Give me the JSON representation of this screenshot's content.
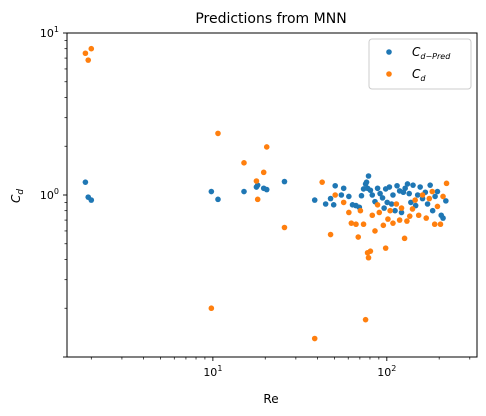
{
  "chart_data": {
    "type": "scatter",
    "title": "Predictions from MNN",
    "xlabel": "Re",
    "ylabel": "C_d",
    "xscale": "log",
    "yscale": "log",
    "xlim": [
      1.45,
      330
    ],
    "ylim": [
      0.1,
      10
    ],
    "grid": false,
    "legend_position": "top-right",
    "x_ticks": [
      {
        "value": 10,
        "base": "10",
        "exp": "1"
      },
      {
        "value": 100,
        "base": "10",
        "exp": "2"
      }
    ],
    "y_ticks": [
      {
        "value": 1,
        "base": "10",
        "exp": "0"
      },
      {
        "value": 10,
        "base": "10",
        "exp": "1"
      }
    ],
    "series": [
      {
        "name": "C_{d-Pred}",
        "legend_main": "C",
        "legend_sub": "d−Pred",
        "color": "#1f77b4",
        "points": [
          [
            1.85,
            1.2
          ],
          [
            1.92,
            0.97
          ],
          [
            2.0,
            0.93
          ],
          [
            9.8,
            1.05
          ],
          [
            10.7,
            0.94
          ],
          [
            15.1,
            1.05
          ],
          [
            17.8,
            1.12
          ],
          [
            18.1,
            1.15
          ],
          [
            19.6,
            1.1
          ],
          [
            20.4,
            1.08
          ],
          [
            25.8,
            1.21
          ],
          [
            38.5,
            0.93
          ],
          [
            44.5,
            0.88
          ],
          [
            47.5,
            0.95
          ],
          [
            49.5,
            0.87
          ],
          [
            50.5,
            1.14
          ],
          [
            54.8,
            1.0
          ],
          [
            56.5,
            1.1
          ],
          [
            60.5,
            0.98
          ],
          [
            63.5,
            0.87
          ],
          [
            66.5,
            0.86
          ],
          [
            69.5,
            0.84
          ],
          [
            71.5,
            0.99
          ],
          [
            73.5,
            1.09
          ],
          [
            75.5,
            1.17
          ],
          [
            76.5,
            1.2
          ],
          [
            77.5,
            1.1
          ],
          [
            78.5,
            1.31
          ],
          [
            80.5,
            1.07
          ],
          [
            82.5,
            1.0
          ],
          [
            85.5,
            0.91
          ],
          [
            88.5,
            1.1
          ],
          [
            91.5,
            1.02
          ],
          [
            94.5,
            0.96
          ],
          [
            96.5,
            0.83
          ],
          [
            98.5,
            1.09
          ],
          [
            100.5,
            0.9
          ],
          [
            103.5,
            1.12
          ],
          [
            106.5,
            0.88
          ],
          [
            108.5,
            1.0
          ],
          [
            111.5,
            0.8
          ],
          [
            114.5,
            1.14
          ],
          [
            118.5,
            1.06
          ],
          [
            121.5,
            0.78
          ],
          [
            124.5,
            1.04
          ],
          [
            127.5,
            1.1
          ],
          [
            131.5,
            1.17
          ],
          [
            134.5,
            1.02
          ],
          [
            137.5,
            0.9
          ],
          [
            141.5,
            1.15
          ],
          [
            146.5,
            0.86
          ],
          [
            150.5,
            1.0
          ],
          [
            155.5,
            1.12
          ],
          [
            160.5,
            0.95
          ],
          [
            166.5,
            1.04
          ],
          [
            171.5,
            0.88
          ],
          [
            177.5,
            1.15
          ],
          [
            183.5,
            0.8
          ],
          [
            189.5,
            0.98
          ],
          [
            195.5,
            1.05
          ],
          [
            205.5,
            0.75
          ],
          [
            210.5,
            0.72
          ],
          [
            218.5,
            0.92
          ]
        ]
      },
      {
        "name": "C_d",
        "legend_main": "C",
        "legend_sub": "d",
        "color": "#ff7f0e",
        "points": [
          [
            1.85,
            7.5
          ],
          [
            1.92,
            6.8
          ],
          [
            2.0,
            8.0
          ],
          [
            9.8,
            0.2
          ],
          [
            10.7,
            2.4
          ],
          [
            15.1,
            1.58
          ],
          [
            17.8,
            1.22
          ],
          [
            18.1,
            0.94
          ],
          [
            19.6,
            1.38
          ],
          [
            20.4,
            1.98
          ],
          [
            25.8,
            0.63
          ],
          [
            38.5,
            0.13
          ],
          [
            42.5,
            1.2
          ],
          [
            47.5,
            0.57
          ],
          [
            50.5,
            1.0
          ],
          [
            56.5,
            0.9
          ],
          [
            60.5,
            0.78
          ],
          [
            62.5,
            0.67
          ],
          [
            66.5,
            0.66
          ],
          [
            68.5,
            0.55
          ],
          [
            70.5,
            0.8
          ],
          [
            73.5,
            0.66
          ],
          [
            75.5,
            0.17
          ],
          [
            77.5,
            0.44
          ],
          [
            78.5,
            0.41
          ],
          [
            80.5,
            0.45
          ],
          [
            82.5,
            0.75
          ],
          [
            85.5,
            0.6
          ],
          [
            88.5,
            0.87
          ],
          [
            90.5,
            0.78
          ],
          [
            95.5,
            0.65
          ],
          [
            98.5,
            0.47
          ],
          [
            101.5,
            0.71
          ],
          [
            104.5,
            0.8
          ],
          [
            108.5,
            0.67
          ],
          [
            113.5,
            0.88
          ],
          [
            118.5,
            0.7
          ],
          [
            121.5,
            0.83
          ],
          [
            126.5,
            0.54
          ],
          [
            130.5,
            0.69
          ],
          [
            135.5,
            0.74
          ],
          [
            140.5,
            0.82
          ],
          [
            145.5,
            0.93
          ],
          [
            152.5,
            0.75
          ],
          [
            160.5,
            1.0
          ],
          [
            168.5,
            0.72
          ],
          [
            175.5,
            0.95
          ],
          [
            182.5,
            1.05
          ],
          [
            188.5,
            0.66
          ],
          [
            195.5,
            0.85
          ],
          [
            203.5,
            0.66
          ],
          [
            210.5,
            0.98
          ],
          [
            220.5,
            1.18
          ]
        ]
      }
    ]
  }
}
